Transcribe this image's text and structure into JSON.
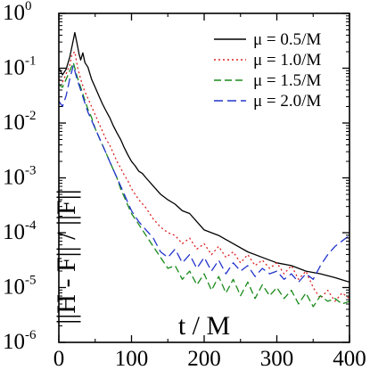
{
  "chart_data": {
    "type": "line",
    "title": "",
    "xlabel": "t / M",
    "ylabel": "||H - F|| / ||F||",
    "xlim": [
      0,
      400
    ],
    "ylim_log10": [
      -6,
      0
    ],
    "y_scale": "log",
    "grid": false,
    "legend_position": "top-right",
    "x_ticks": [
      "0",
      "100",
      "200",
      "300",
      "400"
    ],
    "y_ticks": [
      {
        "base": "10",
        "exp": "0"
      },
      {
        "base": "10",
        "exp": "-1"
      },
      {
        "base": "10",
        "exp": "-2"
      },
      {
        "base": "10",
        "exp": "-3"
      },
      {
        "base": "10",
        "exp": "-4"
      },
      {
        "base": "10",
        "exp": "-5"
      },
      {
        "base": "10",
        "exp": "-6"
      }
    ],
    "series": [
      {
        "name": "μ = 0.5/M",
        "color": "#000000",
        "dash": "solid",
        "x": [
          0,
          5,
          10,
          15,
          20,
          22,
          25,
          28,
          30,
          33,
          36,
          40,
          45,
          50,
          55,
          60,
          65,
          70,
          75,
          80,
          85,
          90,
          95,
          100,
          105,
          110,
          115,
          120,
          130,
          140,
          150,
          160,
          170,
          180,
          190,
          200,
          220,
          240,
          260,
          280,
          300,
          320,
          340,
          360,
          380,
          400
        ],
        "y": [
          -1.0,
          -1.12,
          -1.02,
          -0.8,
          -0.48,
          -0.35,
          -0.55,
          -0.75,
          -0.85,
          -0.72,
          -0.9,
          -0.98,
          -1.2,
          -1.35,
          -1.5,
          -1.65,
          -1.78,
          -1.9,
          -2.05,
          -2.18,
          -2.3,
          -2.45,
          -2.58,
          -2.7,
          -2.78,
          -2.88,
          -2.92,
          -3.0,
          -3.15,
          -3.3,
          -3.4,
          -3.48,
          -3.6,
          -3.65,
          -3.8,
          -3.95,
          -4.05,
          -4.2,
          -4.35,
          -4.45,
          -4.55,
          -4.6,
          -4.7,
          -4.75,
          -4.82,
          -4.9
        ]
      },
      {
        "name": "μ = 1.0/M",
        "color": "#dd2222",
        "dash": "2,3",
        "x": [
          0,
          5,
          10,
          15,
          18,
          22,
          26,
          30,
          35,
          40,
          45,
          50,
          55,
          60,
          65,
          70,
          75,
          80,
          85,
          90,
          95,
          100,
          110,
          120,
          130,
          140,
          150,
          160,
          170,
          180,
          190,
          200,
          210,
          220,
          230,
          240,
          250,
          260,
          270,
          280,
          290,
          300,
          310,
          320,
          330,
          340,
          350,
          360,
          370,
          380,
          390,
          400
        ],
        "y": [
          -1.2,
          -1.25,
          -1.1,
          -0.95,
          -0.75,
          -0.7,
          -1.0,
          -1.2,
          -1.4,
          -1.55,
          -1.7,
          -1.85,
          -2.0,
          -2.15,
          -2.3,
          -2.4,
          -2.55,
          -2.7,
          -2.82,
          -2.95,
          -3.05,
          -3.2,
          -3.4,
          -3.55,
          -3.75,
          -3.9,
          -4.0,
          -4.05,
          -4.2,
          -4.1,
          -4.3,
          -4.2,
          -4.4,
          -4.25,
          -4.45,
          -4.35,
          -4.55,
          -4.4,
          -4.6,
          -4.5,
          -4.65,
          -4.55,
          -4.75,
          -4.6,
          -4.85,
          -4.7,
          -5.0,
          -5.2,
          -5.05,
          -5.25,
          -5.1,
          -5.2
        ]
      },
      {
        "name": "μ = 1.5/M",
        "color": "#1a8a1a",
        "dash": "8,4",
        "x": [
          0,
          5,
          10,
          15,
          20,
          25,
          30,
          35,
          40,
          45,
          50,
          55,
          60,
          65,
          70,
          75,
          80,
          85,
          90,
          95,
          100,
          110,
          120,
          130,
          140,
          150,
          160,
          170,
          180,
          190,
          200,
          210,
          220,
          230,
          240,
          250,
          260,
          270,
          280,
          290,
          300,
          310,
          320,
          330,
          340,
          350,
          360,
          370,
          380,
          390,
          400
        ],
        "y": [
          -1.3,
          -1.35,
          -1.2,
          -1.05,
          -0.9,
          -1.15,
          -1.35,
          -1.55,
          -1.75,
          -1.9,
          -2.1,
          -2.25,
          -2.4,
          -2.55,
          -2.7,
          -2.85,
          -3.0,
          -3.2,
          -3.35,
          -3.5,
          -3.65,
          -3.85,
          -4.05,
          -4.25,
          -4.45,
          -4.65,
          -4.6,
          -4.85,
          -4.7,
          -4.95,
          -4.75,
          -5.05,
          -4.8,
          -5.1,
          -4.85,
          -5.15,
          -4.9,
          -5.2,
          -4.95,
          -5.15,
          -5.0,
          -5.2,
          -5.05,
          -5.3,
          -5.1,
          -5.35,
          -5.15,
          -5.25,
          -5.2,
          -5.3,
          -5.25
        ]
      },
      {
        "name": "μ = 2.0/M",
        "color": "#2233cc",
        "dash": "10,5",
        "x": [
          0,
          5,
          10,
          15,
          20,
          25,
          30,
          35,
          40,
          45,
          50,
          55,
          60,
          65,
          70,
          75,
          80,
          85,
          90,
          95,
          100,
          110,
          120,
          130,
          140,
          150,
          160,
          170,
          180,
          190,
          200,
          210,
          220,
          230,
          240,
          250,
          260,
          270,
          280,
          290,
          300,
          310,
          320,
          330,
          340,
          350,
          360,
          370,
          380,
          390,
          400
        ],
        "y": [
          -1.6,
          -1.7,
          -1.5,
          -1.2,
          -0.95,
          -1.2,
          -1.4,
          -1.6,
          -1.8,
          -1.95,
          -2.1,
          -2.25,
          -2.4,
          -2.55,
          -2.7,
          -2.85,
          -3.0,
          -3.15,
          -3.3,
          -3.45,
          -3.6,
          -3.8,
          -3.95,
          -4.1,
          -4.35,
          -4.45,
          -4.3,
          -4.55,
          -4.4,
          -4.65,
          -4.45,
          -4.7,
          -4.5,
          -4.75,
          -4.55,
          -4.7,
          -4.6,
          -4.8,
          -4.65,
          -4.75,
          -4.7,
          -4.85,
          -4.75,
          -4.9,
          -4.75,
          -4.85,
          -4.6,
          -4.4,
          -4.25,
          -4.15,
          -4.05
        ]
      }
    ]
  }
}
